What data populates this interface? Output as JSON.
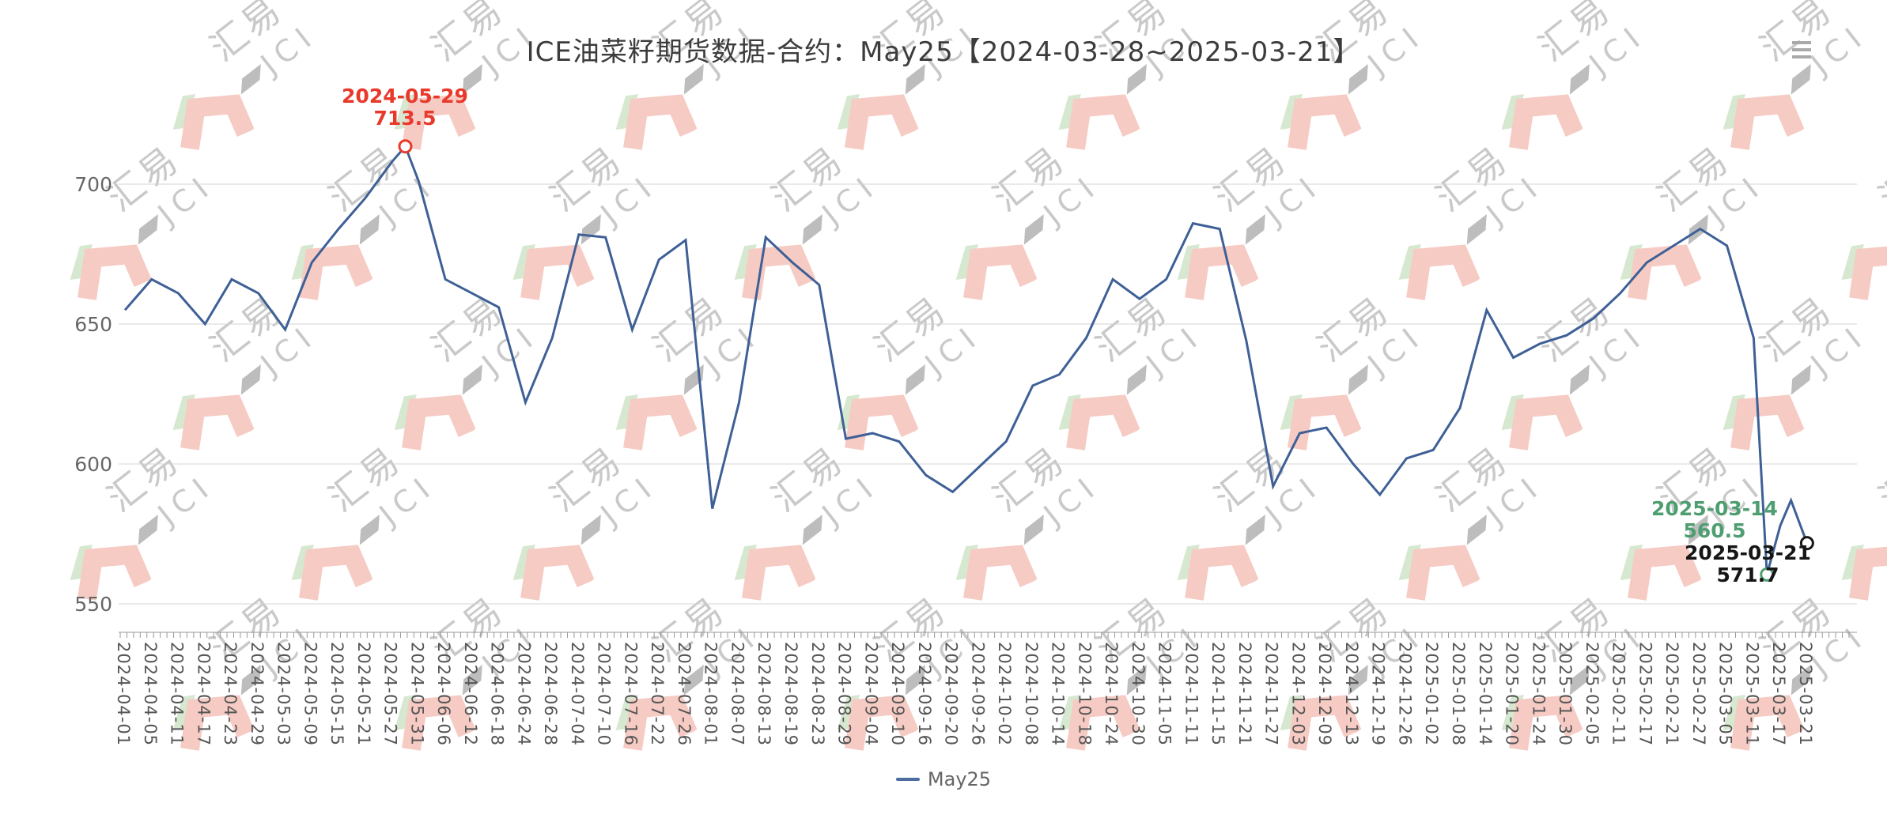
{
  "title": "ICE油菜籽期货数据-合约：May25【2024-03-28~2025-03-21】",
  "menu": {
    "icon": "hamburger-menu"
  },
  "watermark": {
    "brand_cn": "汇易",
    "brand_en": "JCI"
  },
  "legend": {
    "label": "May25"
  },
  "colors": {
    "line": "#3e6096",
    "grid": "#d4d4d4",
    "axis": "#999999",
    "max_annotation": "#e8392b",
    "min_annotation": "#4f9e71",
    "last_annotation": "#161616",
    "watermark_pink": "#f6cbc4",
    "watermark_green": "#d6e8d0"
  },
  "chart_data": {
    "type": "line",
    "title": "ICE油菜籽期货数据-合约：May25【2024-03-28~2025-03-21】",
    "xlabel": "",
    "ylabel": "",
    "ylim": [
      540,
      720
    ],
    "y_ticks": [
      550,
      600,
      650,
      700
    ],
    "grid": "horizontal-only",
    "legend_position": "bottom-center",
    "categories": [
      "2024-04-01",
      "2024-04-05",
      "2024-04-11",
      "2024-04-17",
      "2024-04-23",
      "2024-04-29",
      "2024-05-03",
      "2024-05-09",
      "2024-05-15",
      "2024-05-21",
      "2024-05-27",
      "2024-05-31",
      "2024-06-06",
      "2024-06-12",
      "2024-06-18",
      "2024-06-24",
      "2024-06-28",
      "2024-07-04",
      "2024-07-10",
      "2024-07-16",
      "2024-07-22",
      "2024-07-26",
      "2024-08-01",
      "2024-08-07",
      "2024-08-13",
      "2024-08-19",
      "2024-08-23",
      "2024-08-29",
      "2024-09-04",
      "2024-09-10",
      "2024-09-16",
      "2024-09-20",
      "2024-09-26",
      "2024-10-02",
      "2024-10-08",
      "2024-10-14",
      "2024-10-18",
      "2024-10-24",
      "2024-10-30",
      "2024-11-05",
      "2024-11-11",
      "2024-11-15",
      "2024-11-21",
      "2024-11-27",
      "2024-12-03",
      "2024-12-09",
      "2024-12-13",
      "2024-12-19",
      "2024-12-26",
      "2025-01-02",
      "2025-01-08",
      "2025-01-14",
      "2025-01-20",
      "2025-01-24",
      "2025-01-30",
      "2025-02-05",
      "2025-02-11",
      "2025-02-17",
      "2025-02-21",
      "2025-02-27",
      "2025-03-05",
      "2025-03-11",
      "2025-03-17",
      "2025-03-21"
    ],
    "series": [
      {
        "name": "May25",
        "color": "#3e6096",
        "values": [
          655,
          666,
          661,
          650,
          666,
          661,
          648,
          672,
          684,
          695,
          708,
          701,
          666,
          661,
          656,
          622,
          645,
          682,
          681,
          648,
          673,
          680,
          584,
          622,
          681,
          672,
          664,
          609,
          611,
          608,
          596,
          590,
          599,
          608,
          628,
          632,
          645,
          666,
          659,
          666,
          686,
          684,
          644,
          592,
          611,
          613,
          600,
          589,
          602,
          605,
          620,
          655,
          638,
          643,
          646,
          652,
          661,
          672,
          678,
          684,
          678,
          645,
          578,
          571.7
        ]
      }
    ],
    "extra_points": [
      {
        "date": "2024-05-29",
        "pos": 10.5,
        "value": 713.5
      },
      {
        "date": "2025-03-14",
        "pos": 61.5,
        "value": 560.5
      },
      {
        "date": "2025-03-18",
        "pos": 62.4,
        "value": 587,
        "approx": true
      }
    ],
    "annotations": [
      {
        "name": "max",
        "date": "2024-05-29",
        "value": "713.5",
        "pos": 10.5,
        "v": 713.5,
        "color": "#e8392b"
      },
      {
        "name": "min",
        "date": "2025-03-14",
        "value": "560.5",
        "pos": 61.5,
        "v": 560.5,
        "color": "#4f9e71"
      },
      {
        "name": "last",
        "date": "2025-03-21",
        "value": "571.7",
        "pos": 63,
        "v": 571.7,
        "color": "#161616"
      }
    ]
  }
}
